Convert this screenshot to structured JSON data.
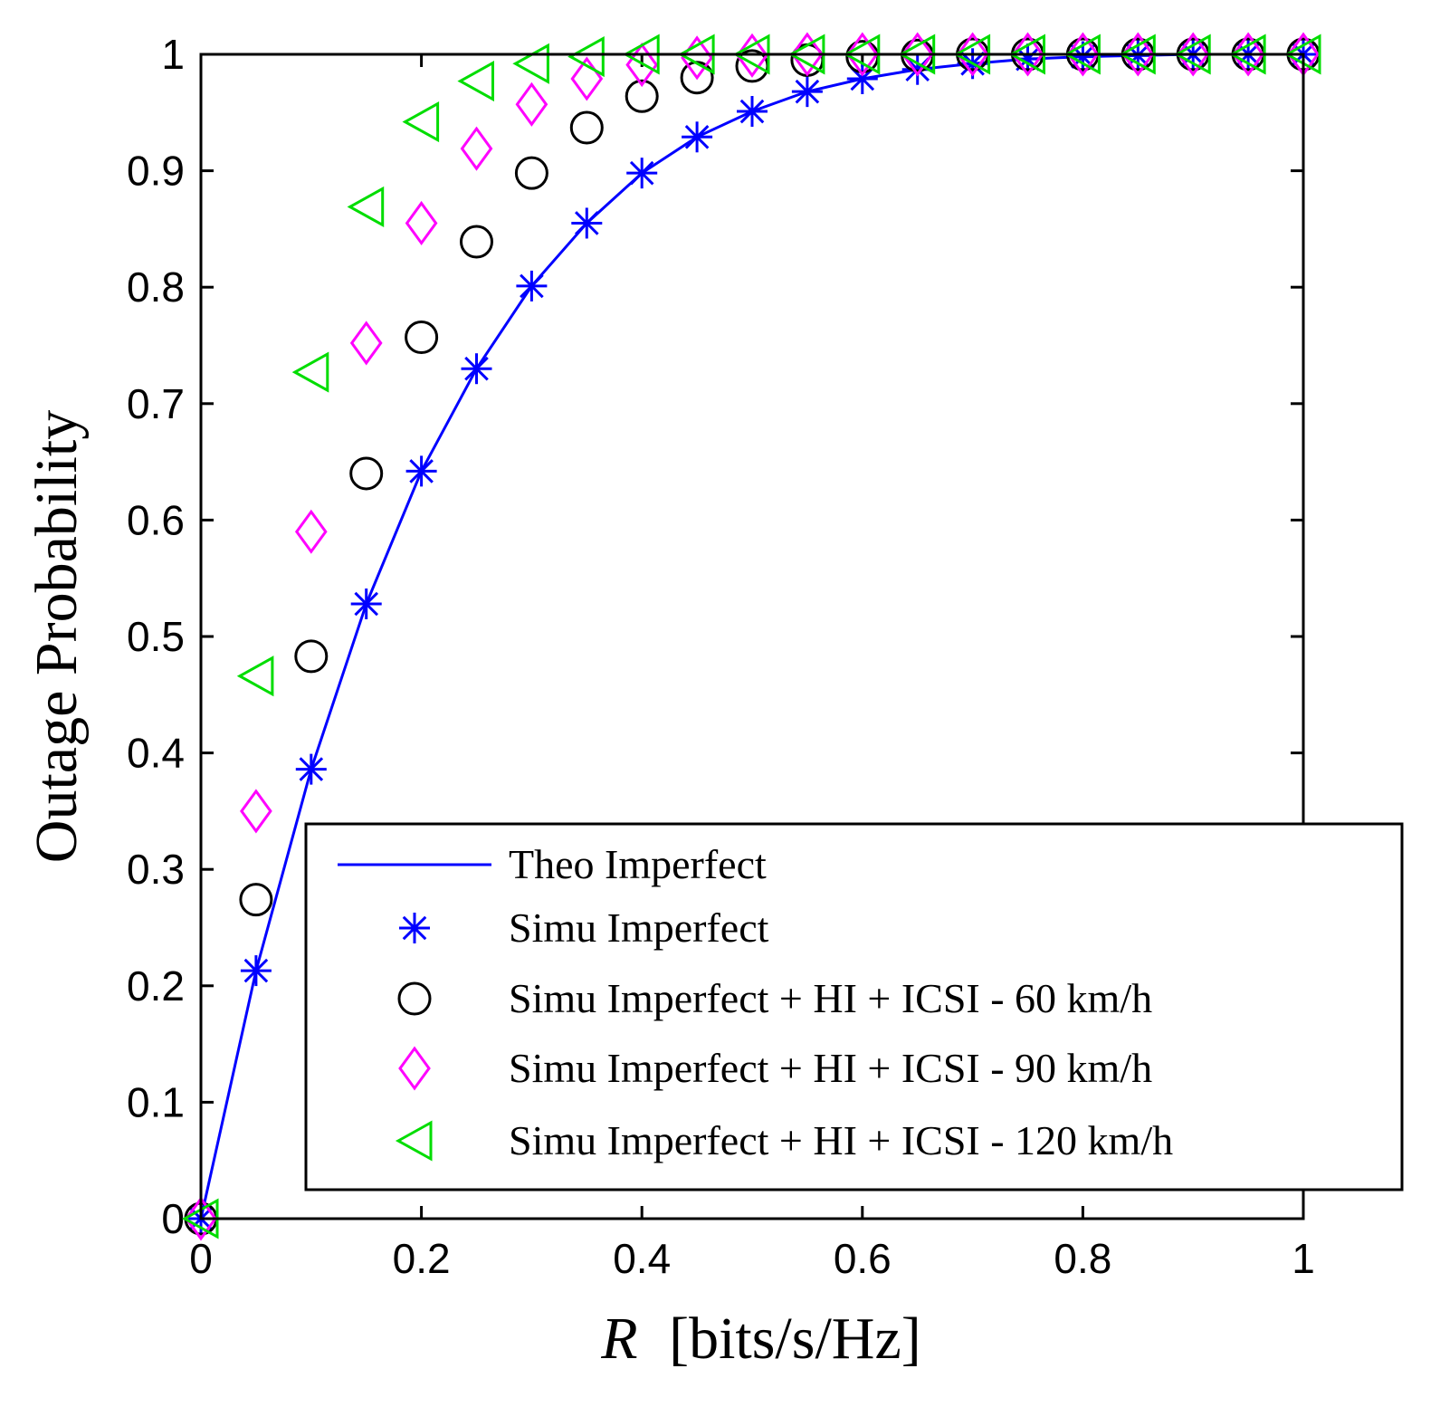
{
  "chart_data": {
    "type": "line",
    "title": "",
    "xlabel": "R [bits/s/Hz]",
    "xlabel_var": "R",
    "xlabel_unit": "[bits/s/Hz]",
    "ylabel": "Outage Probability",
    "xlim": [
      0,
      1
    ],
    "ylim": [
      0,
      1
    ],
    "grid": false,
    "legend_position": "bottom-right",
    "x_ticks": [
      "0",
      "0.2",
      "0.4",
      "0.6",
      "0.8",
      "1"
    ],
    "y_ticks": [
      "0",
      "0.1",
      "0.2",
      "0.3",
      "0.4",
      "0.5",
      "0.6",
      "0.7",
      "0.8",
      "0.9",
      "1"
    ],
    "x": [
      0,
      0.05,
      0.1,
      0.15,
      0.2,
      0.25,
      0.3,
      0.35,
      0.4,
      0.45,
      0.5,
      0.55,
      0.6,
      0.65,
      0.7,
      0.75,
      0.8,
      0.85,
      0.9,
      0.95,
      1
    ],
    "series": [
      {
        "name": "Theo Imperfect",
        "style": "line",
        "marker": "none",
        "color": "#0000ff",
        "values": [
          0,
          0.213,
          0.386,
          0.528,
          0.642,
          0.73,
          0.801,
          0.855,
          0.898,
          0.929,
          0.951,
          0.968,
          0.979,
          0.987,
          0.992,
          0.996,
          0.998,
          0.999,
          1.0,
          1.0,
          1.0
        ]
      },
      {
        "name": "Simu Imperfect",
        "style": "markers",
        "marker": "asterisk",
        "color": "#0000ff",
        "values": [
          0,
          0.213,
          0.386,
          0.528,
          0.642,
          0.73,
          0.801,
          0.855,
          0.898,
          0.929,
          0.951,
          0.968,
          0.979,
          0.987,
          0.992,
          0.996,
          0.998,
          0.999,
          1.0,
          1.0,
          1.0
        ]
      },
      {
        "name": "Simu Imperfect + HI + ICSI - 60 km/h",
        "style": "markers",
        "marker": "circle",
        "color": "#000000",
        "values": [
          0,
          0.274,
          0.483,
          0.64,
          0.757,
          0.839,
          0.898,
          0.937,
          0.964,
          0.98,
          0.99,
          0.995,
          0.998,
          0.999,
          1.0,
          1.0,
          1.0,
          1.0,
          1.0,
          1.0,
          1.0
        ]
      },
      {
        "name": "Simu Imperfect + HI + ICSI - 90 km/h",
        "style": "markers",
        "marker": "diamond",
        "color": "#ff00ff",
        "values": [
          0,
          0.35,
          0.59,
          0.752,
          0.855,
          0.919,
          0.957,
          0.979,
          0.991,
          0.997,
          0.999,
          1.0,
          1.0,
          1.0,
          1.0,
          1.0,
          1.0,
          1.0,
          1.0,
          1.0,
          1.0
        ]
      },
      {
        "name": "Simu Imperfect + HI + ICSI - 120 km/h",
        "style": "markers",
        "marker": "triangle-left",
        "color": "#00dd00",
        "values": [
          0,
          0.466,
          0.727,
          0.869,
          0.942,
          0.977,
          0.992,
          0.998,
          1.0,
          1.0,
          1.0,
          1.0,
          1.0,
          1.0,
          1.0,
          1.0,
          1.0,
          1.0,
          1.0,
          1.0,
          1.0
        ]
      }
    ]
  }
}
